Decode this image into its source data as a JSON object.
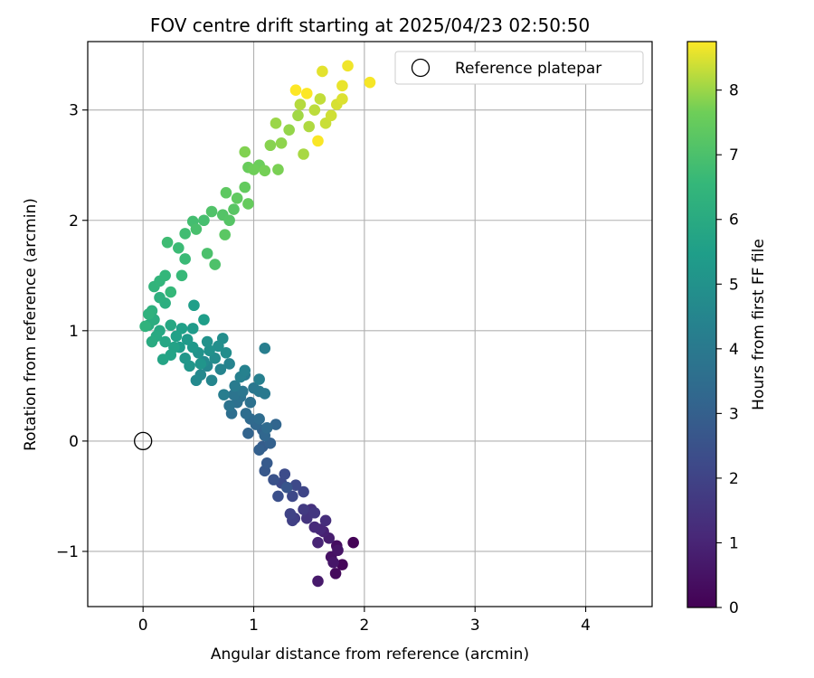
{
  "chart_data": {
    "type": "scatter",
    "title": "FOV centre drift starting at 2025/04/23 02:50:50",
    "xlabel": "Angular distance from reference (arcmin)",
    "ylabel": "Rotation from reference (arcmin)",
    "xlim": [
      -0.5,
      4.6
    ],
    "ylim": [
      -1.5,
      3.62
    ],
    "xticks": [
      "0",
      "1",
      "2",
      "3",
      "4"
    ],
    "yticks": [
      "−1",
      "0",
      "1",
      "2",
      "3"
    ],
    "grid": true,
    "legend": {
      "position": "top-right",
      "entries": [
        "Reference platepar"
      ]
    },
    "reference_point": {
      "x": 0,
      "y": 0
    },
    "colorbar": {
      "label": "Hours from first FF file",
      "range": [
        0,
        8.75
      ],
      "ticks": [
        "0",
        "1",
        "2",
        "3",
        "4",
        "5",
        "6",
        "7",
        "8"
      ],
      "colormap": "viridis"
    },
    "points": [
      [
        1.9,
        -0.92,
        0.05
      ],
      [
        1.8,
        -1.12,
        0.15
      ],
      [
        1.74,
        -1.2,
        0.25
      ],
      [
        1.75,
        -0.95,
        0.35
      ],
      [
        1.7,
        -1.05,
        0.45
      ],
      [
        1.76,
        -0.99,
        0.55
      ],
      [
        1.72,
        -1.1,
        0.6
      ],
      [
        1.58,
        -1.27,
        0.7
      ],
      [
        1.68,
        -0.88,
        0.8
      ],
      [
        1.63,
        -0.82,
        0.9
      ],
      [
        1.58,
        -0.92,
        1.0
      ],
      [
        1.6,
        -0.8,
        1.1
      ],
      [
        1.55,
        -0.78,
        1.2
      ],
      [
        1.65,
        -0.72,
        1.3
      ],
      [
        1.52,
        -0.62,
        1.4
      ],
      [
        1.48,
        -0.7,
        1.5
      ],
      [
        1.55,
        -0.65,
        1.6
      ],
      [
        1.45,
        -0.62,
        1.7
      ],
      [
        1.37,
        -0.7,
        1.8
      ],
      [
        1.35,
        -0.72,
        1.9
      ],
      [
        1.33,
        -0.66,
        2.0
      ],
      [
        1.45,
        -0.46,
        2.05
      ],
      [
        1.35,
        -0.5,
        2.15
      ],
      [
        1.38,
        -0.4,
        2.2
      ],
      [
        1.25,
        -0.38,
        2.25
      ],
      [
        1.28,
        -0.3,
        2.3
      ],
      [
        1.22,
        -0.5,
        2.4
      ],
      [
        1.18,
        -0.35,
        2.5
      ],
      [
        1.3,
        -0.42,
        2.6
      ],
      [
        1.1,
        -0.27,
        2.7
      ],
      [
        1.12,
        -0.2,
        2.8
      ],
      [
        1.08,
        -0.05,
        2.9
      ],
      [
        1.05,
        -0.08,
        3.0
      ],
      [
        1.15,
        -0.02,
        3.05
      ],
      [
        1.08,
        0.1,
        3.1
      ],
      [
        0.95,
        0.07,
        3.15
      ],
      [
        1.2,
        0.15,
        3.2
      ],
      [
        1.1,
        0.05,
        3.25
      ],
      [
        1.02,
        0.15,
        3.3
      ],
      [
        0.97,
        0.2,
        3.35
      ],
      [
        1.12,
        0.12,
        3.4
      ],
      [
        1.05,
        0.2,
        3.45
      ],
      [
        0.93,
        0.25,
        3.5
      ],
      [
        0.8,
        0.25,
        3.55
      ],
      [
        0.85,
        0.35,
        3.6
      ],
      [
        0.97,
        0.35,
        3.65
      ],
      [
        0.88,
        0.4,
        3.7
      ],
      [
        0.78,
        0.32,
        3.75
      ],
      [
        0.82,
        0.42,
        3.8
      ],
      [
        0.9,
        0.45,
        3.85
      ],
      [
        1.0,
        0.48,
        3.9
      ],
      [
        1.05,
        0.45,
        3.95
      ],
      [
        1.1,
        0.43,
        4.0
      ],
      [
        0.92,
        0.6,
        4.05
      ],
      [
        0.83,
        0.5,
        4.1
      ],
      [
        0.73,
        0.42,
        4.15
      ],
      [
        1.1,
        0.84,
        4.2
      ],
      [
        1.05,
        0.56,
        4.25
      ],
      [
        0.88,
        0.58,
        4.3
      ],
      [
        0.92,
        0.64,
        4.35
      ],
      [
        0.78,
        0.7,
        4.4
      ],
      [
        0.7,
        0.65,
        4.45
      ],
      [
        0.62,
        0.55,
        4.5
      ],
      [
        0.58,
        0.68,
        4.55
      ],
      [
        0.52,
        0.6,
        4.6
      ],
      [
        0.48,
        0.55,
        4.65
      ],
      [
        0.55,
        0.72,
        4.7
      ],
      [
        0.65,
        0.75,
        4.75
      ],
      [
        0.75,
        0.8,
        4.8
      ],
      [
        0.72,
        0.93,
        4.85
      ],
      [
        0.68,
        0.86,
        4.9
      ],
      [
        0.6,
        0.82,
        4.95
      ],
      [
        0.58,
        0.9,
        5.0
      ],
      [
        0.5,
        0.8,
        5.05
      ],
      [
        0.52,
        0.7,
        5.1
      ],
      [
        0.42,
        0.68,
        5.15
      ],
      [
        0.38,
        0.75,
        5.2
      ],
      [
        0.45,
        0.85,
        5.25
      ],
      [
        0.4,
        0.92,
        5.3
      ],
      [
        0.45,
        1.02,
        5.35
      ],
      [
        0.33,
        0.85,
        5.4
      ],
      [
        0.55,
        1.1,
        5.45
      ],
      [
        0.46,
        1.23,
        5.5
      ],
      [
        0.35,
        1.02,
        5.55
      ],
      [
        0.3,
        0.95,
        5.6
      ],
      [
        0.28,
        0.85,
        5.65
      ],
      [
        0.25,
        0.78,
        5.7
      ],
      [
        0.18,
        0.74,
        5.75
      ],
      [
        0.2,
        0.9,
        5.8
      ],
      [
        0.25,
        1.05,
        5.85
      ],
      [
        0.15,
        1.0,
        5.9
      ],
      [
        0.12,
        0.95,
        5.95
      ],
      [
        0.08,
        0.9,
        6.0
      ],
      [
        0.05,
        1.05,
        6.05
      ],
      [
        0.1,
        1.1,
        6.1
      ],
      [
        0.2,
        1.25,
        6.15
      ],
      [
        0.15,
        1.3,
        6.2
      ],
      [
        0.08,
        1.18,
        6.25
      ],
      [
        0.05,
        1.15,
        6.3
      ],
      [
        0.02,
        1.04,
        6.35
      ],
      [
        0.1,
        1.4,
        6.4
      ],
      [
        0.15,
        1.45,
        6.45
      ],
      [
        0.2,
        1.5,
        6.5
      ],
      [
        0.25,
        1.35,
        6.55
      ],
      [
        0.35,
        1.5,
        6.6
      ],
      [
        0.38,
        1.65,
        6.65
      ],
      [
        0.32,
        1.75,
        6.7
      ],
      [
        0.22,
        1.8,
        6.75
      ],
      [
        0.38,
        1.88,
        6.8
      ],
      [
        0.45,
        1.99,
        6.85
      ],
      [
        0.55,
        2.0,
        6.9
      ],
      [
        0.48,
        1.92,
        6.95
      ],
      [
        0.58,
        1.7,
        7.0
      ],
      [
        0.65,
        1.6,
        7.05
      ],
      [
        0.62,
        2.08,
        7.1
      ],
      [
        0.72,
        2.05,
        7.15
      ],
      [
        0.78,
        2.0,
        7.2
      ],
      [
        0.82,
        2.1,
        7.25
      ],
      [
        0.74,
        1.87,
        7.3
      ],
      [
        0.75,
        2.25,
        7.35
      ],
      [
        0.85,
        2.2,
        7.4
      ],
      [
        0.92,
        2.3,
        7.45
      ],
      [
        0.95,
        2.15,
        7.5
      ],
      [
        0.95,
        2.48,
        7.55
      ],
      [
        1.05,
        2.5,
        7.6
      ],
      [
        1.0,
        2.46,
        7.65
      ],
      [
        1.1,
        2.45,
        7.7
      ],
      [
        1.22,
        2.46,
        7.75
      ],
      [
        0.92,
        2.62,
        7.8
      ],
      [
        1.15,
        2.68,
        7.85
      ],
      [
        1.25,
        2.7,
        7.9
      ],
      [
        1.32,
        2.82,
        7.95
      ],
      [
        1.2,
        2.88,
        8.0
      ],
      [
        1.4,
        2.95,
        8.05
      ],
      [
        1.45,
        2.6,
        8.1
      ],
      [
        1.5,
        2.85,
        8.15
      ],
      [
        1.42,
        3.05,
        8.2
      ],
      [
        1.55,
        3.0,
        8.25
      ],
      [
        1.6,
        3.1,
        8.3
      ],
      [
        1.65,
        2.88,
        8.35
      ],
      [
        1.7,
        2.95,
        8.4
      ],
      [
        1.75,
        3.05,
        8.45
      ],
      [
        1.8,
        3.1,
        8.5
      ],
      [
        1.62,
        3.35,
        8.55
      ],
      [
        1.8,
        3.22,
        8.6
      ],
      [
        1.85,
        3.4,
        8.65
      ],
      [
        2.05,
        3.25,
        8.7
      ],
      [
        1.58,
        2.72,
        8.72
      ],
      [
        1.48,
        3.15,
        8.74
      ],
      [
        1.38,
        3.18,
        8.75
      ]
    ]
  }
}
